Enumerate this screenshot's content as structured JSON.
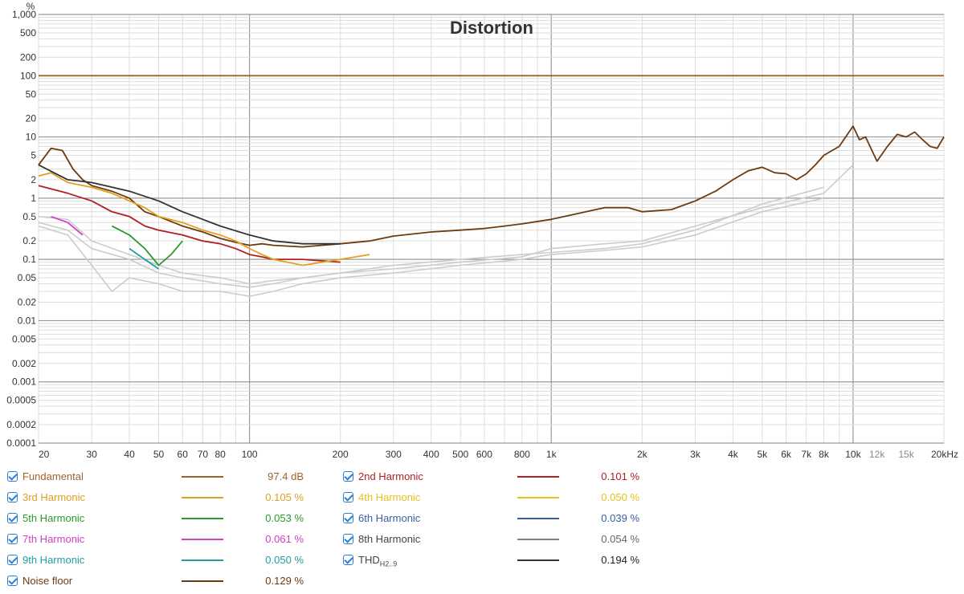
{
  "chart_data": {
    "type": "line",
    "title": "Distortion",
    "ylabel": "%",
    "xlabel_unit": "kHz",
    "xscale": "log",
    "yscale": "log",
    "xlim": [
      20,
      20000
    ],
    "ylim": [
      0.0001,
      1000
    ],
    "grid": true,
    "y_ticks": [
      "0.0001",
      "0.0002",
      "0.0005",
      "0.001",
      "0.002",
      "0.005",
      "0.01",
      "0.02",
      "0.05",
      "0.1",
      "0.2",
      "0.5",
      "1",
      "2",
      "5",
      "10",
      "20",
      "50",
      "100",
      "200",
      "500",
      "1,000"
    ],
    "x_ticks": [
      "20",
      "30",
      "40",
      "50",
      "60",
      "70",
      "80",
      "100",
      "200",
      "300",
      "400",
      "500",
      "600",
      "800",
      "1k",
      "2k",
      "3k",
      "4k",
      "5k",
      "6k",
      "7k",
      "8k",
      "10k",
      "12k",
      "15k",
      "20kHz"
    ],
    "series": [
      {
        "name": "Fundamental",
        "color": "#a0622d",
        "x": [
          20,
          20000
        ],
        "y": [
          100,
          100
        ]
      },
      {
        "name": "Noise floor",
        "color": "#6b3a10",
        "x": [
          20,
          22,
          24,
          26,
          28,
          30,
          35,
          40,
          45,
          50,
          60,
          70,
          80,
          90,
          100,
          110,
          120,
          150,
          200,
          250,
          300,
          400,
          500,
          600,
          700,
          800,
          1000,
          1200,
          1500,
          1800,
          2000,
          2500,
          3000,
          3500,
          4000,
          4500,
          5000,
          5500,
          6000,
          6500,
          7000,
          7500,
          8000,
          9000,
          10000,
          10500,
          11000,
          12000,
          13000,
          14000,
          15000,
          16000,
          17000,
          18000,
          19000,
          20000
        ],
        "y": [
          3.5,
          6.5,
          6.0,
          3.0,
          2.0,
          1.6,
          1.3,
          1.0,
          0.6,
          0.5,
          0.35,
          0.28,
          0.22,
          0.19,
          0.17,
          0.18,
          0.17,
          0.16,
          0.18,
          0.2,
          0.24,
          0.28,
          0.3,
          0.32,
          0.35,
          0.38,
          0.45,
          0.55,
          0.7,
          0.7,
          0.6,
          0.65,
          0.9,
          1.3,
          2.0,
          2.8,
          3.2,
          2.6,
          2.5,
          2.0,
          2.5,
          3.5,
          5.0,
          7.0,
          15,
          9.0,
          10,
          4.0,
          7.0,
          11,
          10,
          12,
          9.0,
          7.0,
          6.5,
          10
        ]
      },
      {
        "name": "2nd Harmonic",
        "color": "#b02020",
        "x": [
          20,
          25,
          30,
          35,
          40,
          45,
          50,
          60,
          70,
          80,
          90,
          100,
          110,
          120,
          150,
          200
        ],
        "y": [
          1.6,
          1.2,
          0.9,
          0.6,
          0.5,
          0.35,
          0.3,
          0.25,
          0.2,
          0.18,
          0.15,
          0.12,
          0.11,
          0.1,
          0.1,
          0.09
        ]
      },
      {
        "name": "3rd Harmonic",
        "color": "#e0a020",
        "x": [
          20,
          22,
          25,
          30,
          35,
          40,
          45,
          50,
          60,
          70,
          80,
          90,
          100,
          110,
          120,
          150,
          200,
          250
        ],
        "y": [
          2.3,
          2.6,
          1.8,
          1.5,
          1.2,
          0.9,
          0.7,
          0.5,
          0.4,
          0.3,
          0.25,
          0.2,
          0.15,
          0.12,
          0.1,
          0.08,
          0.1,
          0.12
        ]
      },
      {
        "name": "5th Harmonic",
        "color": "#2a9a2a",
        "x": [
          35,
          40,
          45,
          50,
          55,
          60
        ],
        "y": [
          0.35,
          0.25,
          0.15,
          0.08,
          0.12,
          0.2
        ]
      },
      {
        "name": "7th Harmonic",
        "color": "#d040c0",
        "x": [
          22,
          25,
          28
        ],
        "y": [
          0.5,
          0.4,
          0.25
        ]
      },
      {
        "name": "9th Harmonic",
        "color": "#20a0a0",
        "x": [
          40,
          45,
          50
        ],
        "y": [
          0.15,
          0.1,
          0.07
        ]
      },
      {
        "name": "THD",
        "color": "#333333",
        "x": [
          20,
          25,
          30,
          40,
          50,
          60,
          70,
          80,
          100,
          120,
          150,
          200
        ],
        "y": [
          3.5,
          2.0,
          1.8,
          1.3,
          0.9,
          0.6,
          0.45,
          0.35,
          0.25,
          0.2,
          0.18,
          0.18
        ]
      },
      {
        "name": "",
        "color": "#cccccc",
        "x": [
          20,
          25,
          30,
          40,
          50,
          60,
          80,
          100,
          120,
          150,
          200,
          300,
          500,
          800,
          1000,
          1500,
          2000,
          3000,
          5000,
          8000,
          10000
        ],
        "y": [
          0.4,
          0.3,
          0.15,
          0.1,
          0.06,
          0.05,
          0.04,
          0.035,
          0.04,
          0.05,
          0.06,
          0.07,
          0.09,
          0.11,
          0.15,
          0.18,
          0.2,
          0.35,
          0.7,
          1.2,
          3.5
        ]
      },
      {
        "name": "",
        "color": "#cccccc",
        "x": [
          20,
          25,
          30,
          40,
          50,
          60,
          80,
          100,
          120,
          150,
          200,
          300,
          500,
          800,
          1000,
          1500,
          2000,
          3000,
          5000,
          8000
        ],
        "y": [
          0.5,
          0.45,
          0.2,
          0.12,
          0.08,
          0.06,
          0.05,
          0.04,
          0.045,
          0.05,
          0.06,
          0.08,
          0.1,
          0.12,
          0.13,
          0.15,
          0.18,
          0.3,
          0.8,
          1.5
        ]
      },
      {
        "name": "",
        "color": "#cccccc",
        "x": [
          20,
          25,
          30,
          35,
          40,
          50,
          60,
          80,
          100,
          120,
          150,
          200,
          300,
          500,
          800,
          1000,
          1500,
          2000,
          3000,
          5000,
          8000
        ],
        "y": [
          0.35,
          0.25,
          0.08,
          0.03,
          0.05,
          0.04,
          0.03,
          0.03,
          0.025,
          0.03,
          0.04,
          0.05,
          0.06,
          0.08,
          0.1,
          0.12,
          0.14,
          0.16,
          0.25,
          0.6,
          1.0
        ]
      }
    ]
  },
  "legend": [
    {
      "label": "Fundamental",
      "value": "97.4 dB",
      "color": "#a0622d"
    },
    {
      "label": "2nd Harmonic",
      "value": "0.101 %",
      "color": "#b02020"
    },
    {
      "label": "3rd Harmonic",
      "value": "0.105 %",
      "color": "#e0a020"
    },
    {
      "label": "4th Harmonic",
      "value": "0.050 %",
      "color": "#e8c020"
    },
    {
      "label": "5th Harmonic",
      "value": "0.053 %",
      "color": "#2a9a2a"
    },
    {
      "label": "6th Harmonic",
      "value": "0.039 %",
      "color": "#3a5ea0"
    },
    {
      "label": "7th Harmonic",
      "value": "0.061 %",
      "color": "#d040c0"
    },
    {
      "label": "8th Harmonic",
      "value": "0.054 %",
      "color": "#808080"
    },
    {
      "label": "9th Harmonic",
      "value": "0.050 %",
      "color": "#20a0a0"
    },
    {
      "label": "THD",
      "sub": "H2..9",
      "value": "0.194 %",
      "color": "#333333"
    },
    {
      "label": "Noise floor",
      "value": "0.129 %",
      "color": "#6b3a10"
    }
  ]
}
